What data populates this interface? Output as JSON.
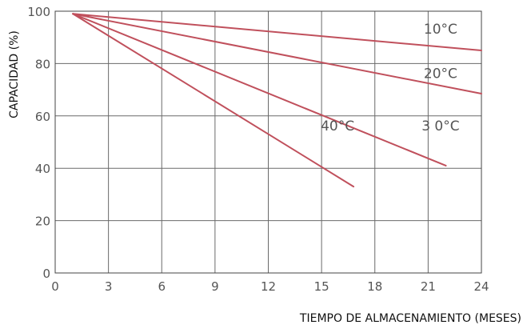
{
  "chart_data": {
    "type": "line",
    "title": "",
    "xlabel": "TIEMPO DE ALMACENAMIENTO (MESES)",
    "ylabel": "CAPACIDAD (%)",
    "xlim": [
      0,
      24
    ],
    "ylim": [
      0,
      100
    ],
    "x_ticks": [
      "0",
      "3",
      "6",
      "9",
      "12",
      "15",
      "18",
      "21",
      "24"
    ],
    "y_ticks": [
      "0",
      "20",
      "40",
      "60",
      "80",
      "100"
    ],
    "grid": true,
    "line_color": "#c0505c",
    "series": [
      {
        "name": "10°C",
        "x": [
          1,
          24
        ],
        "y": [
          99,
          85
        ]
      },
      {
        "name": "20°C",
        "x": [
          1,
          24
        ],
        "y": [
          99,
          68.5
        ]
      },
      {
        "name": "3 0°C",
        "x": [
          1,
          22
        ],
        "y": [
          99,
          41
        ]
      },
      {
        "name": "40°C",
        "x": [
          1,
          16.8
        ],
        "y": [
          99,
          33
        ]
      }
    ]
  }
}
